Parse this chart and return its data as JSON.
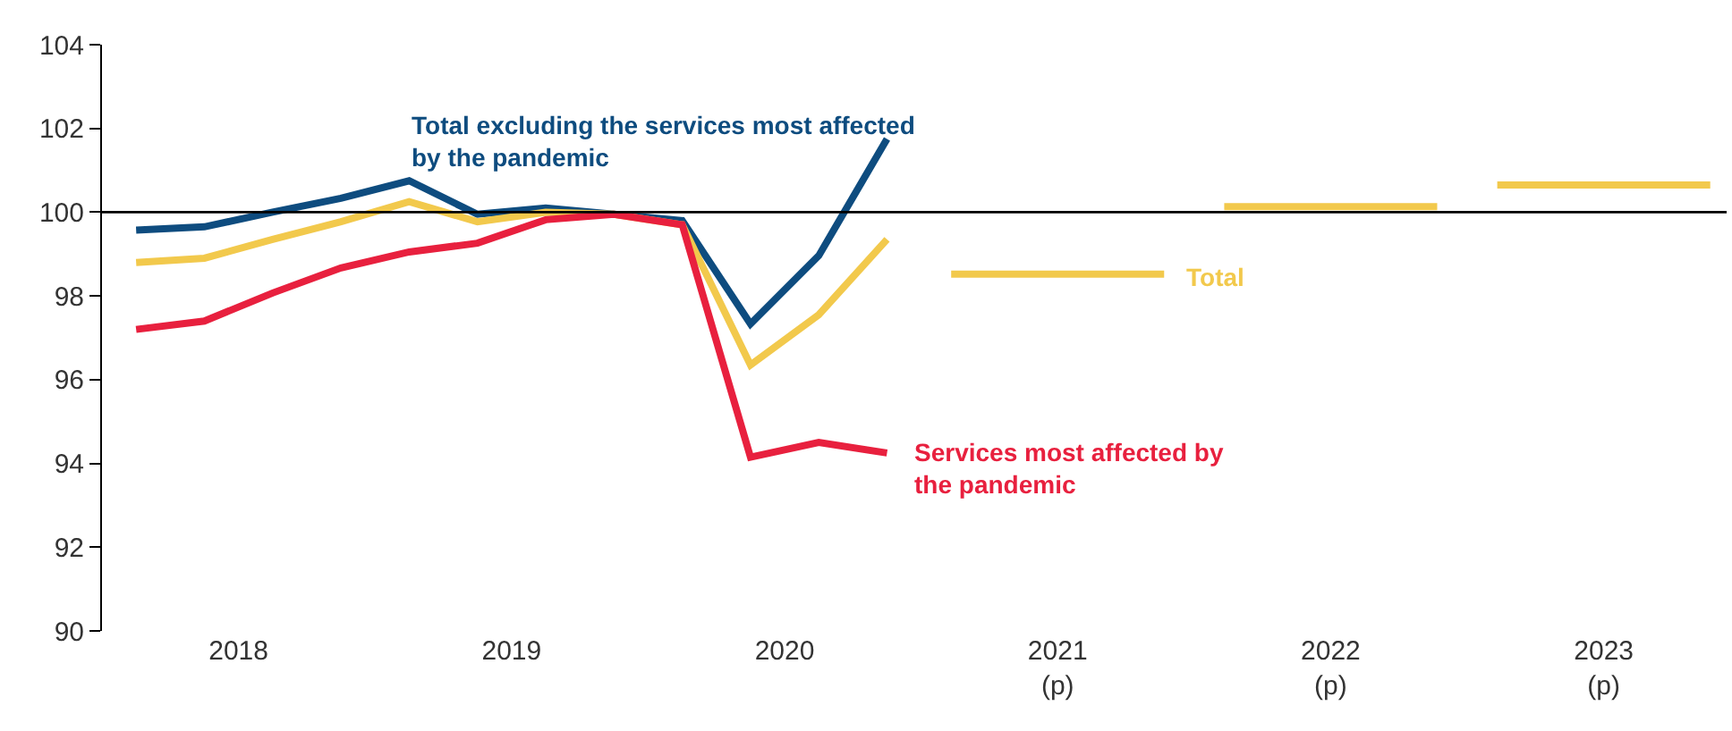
{
  "chart_data": {
    "type": "line",
    "xlim": [
      2018,
      2023.95
    ],
    "xticks": [
      {
        "value": 2018.5,
        "label": "2018"
      },
      {
        "value": 2019.5,
        "label": "2019"
      },
      {
        "value": 2020.5,
        "label": "2020"
      },
      {
        "value": 2021.5,
        "label": "2021\n(p)"
      },
      {
        "value": 2022.5,
        "label": "2022\n(p)"
      },
      {
        "value": 2023.5,
        "label": "2023\n(p)"
      }
    ],
    "ylim": [
      90,
      104
    ],
    "yticks": [
      90,
      92,
      94,
      96,
      98,
      100,
      102,
      104
    ],
    "grid": false,
    "legend": false,
    "marker": "none",
    "line_style": "solid",
    "ref_lines": [
      {
        "axis": "y",
        "value": 100,
        "color": "#000000"
      }
    ],
    "series": [
      {
        "name": "Total excluding the services most affected by the pandemic",
        "color": "#0e4c7f",
        "x": [
          2018.125,
          2018.375,
          2018.625,
          2018.875,
          2019.125,
          2019.375,
          2019.625,
          2019.875,
          2020.125,
          2020.375,
          2020.625,
          2020.875
        ],
        "values": [
          99.57,
          99.65,
          100,
          100.33,
          100.75,
          99.95,
          100.1,
          99.95,
          99.8,
          97.33,
          98.96,
          101.75
        ]
      },
      {
        "name": "Total",
        "color": "#f2c94c",
        "x": [
          2018.125,
          2018.375,
          2018.625,
          2018.875,
          2019.125,
          2019.375,
          2019.625,
          2019.875,
          2020.125,
          2020.375,
          2020.625,
          2020.875,
          2021.0,
          2021.11,
          2021.89,
          2022.0,
          2022.11,
          2022.89,
          2023.0,
          2023.11,
          2023.89
        ],
        "values": [
          98.8,
          98.9,
          99.35,
          99.77,
          100.25,
          99.77,
          100,
          99.95,
          99.7,
          96.35,
          97.55,
          99.35,
          null,
          98.52,
          98.52,
          null,
          100.13,
          100.13,
          null,
          100.65,
          100.65
        ]
      },
      {
        "name": "Services most affected by the pandemic",
        "color": "#e8203e",
        "x": [
          2018.125,
          2018.375,
          2018.625,
          2018.875,
          2019.125,
          2019.375,
          2019.625,
          2019.875,
          2020.125,
          2020.375,
          2020.625,
          2020.875
        ],
        "values": [
          97.2,
          97.4,
          98.07,
          98.67,
          99.05,
          99.26,
          99.82,
          99.95,
          99.7,
          94.15,
          94.5,
          94.25
        ]
      }
    ]
  }
}
